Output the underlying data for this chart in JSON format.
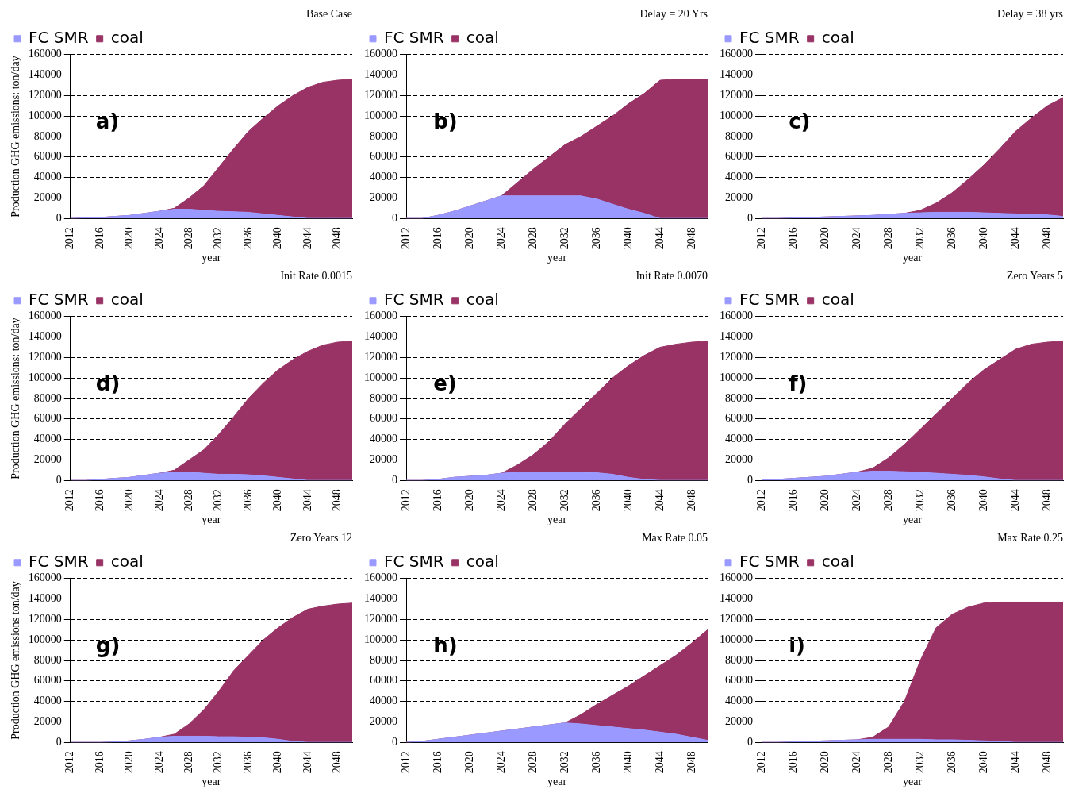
{
  "chart_data": [
    {
      "type": "area",
      "stacked": true,
      "title": "Base Case",
      "xlabel": "year",
      "ylabel": "Production GHG emissions: ton/day",
      "annotations": [
        "a)"
      ],
      "legend": "top left",
      "grid": "y",
      "marker": "none",
      "x": [
        2012,
        2014,
        2016,
        2018,
        2020,
        2022,
        2024,
        2026,
        2028,
        2030,
        2032,
        2034,
        2036,
        2038,
        2040,
        2042,
        2044,
        2046,
        2048,
        2050
      ],
      "xlim": [
        2012,
        2050
      ],
      "xticks": [
        2012,
        2016,
        2020,
        2024,
        2028,
        2032,
        2036,
        2040,
        2044,
        2048
      ],
      "ylim": [
        0,
        160000
      ],
      "yticks": [
        0,
        20000,
        40000,
        60000,
        80000,
        100000,
        120000,
        140000,
        160000
      ],
      "series": [
        {
          "name": "FC SMR",
          "color": "#9999ff",
          "values": [
            0,
            500,
            1000,
            2000,
            3000,
            5000,
            7000,
            9000,
            9000,
            8000,
            7000,
            6500,
            6000,
            4500,
            3000,
            1500,
            0,
            0,
            0,
            0
          ]
        },
        {
          "name": "coal",
          "color": "#993366",
          "values": [
            0,
            0,
            0,
            0,
            0,
            0,
            0,
            1000,
            11000,
            24000,
            43000,
            61500,
            79000,
            93500,
            107000,
            118500,
            128000,
            133000,
            135000,
            136000
          ]
        }
      ]
    },
    {
      "type": "area",
      "stacked": true,
      "title": "Delay = 20 Yrs",
      "xlabel": "year",
      "annotations": [
        "b)"
      ],
      "legend": "top left",
      "grid": "y",
      "marker": "none",
      "x": [
        2012,
        2014,
        2016,
        2018,
        2020,
        2022,
        2024,
        2026,
        2028,
        2030,
        2032,
        2034,
        2036,
        2038,
        2040,
        2042,
        2044,
        2046,
        2048,
        2050
      ],
      "xlim": [
        2012,
        2050
      ],
      "xticks": [
        2012,
        2016,
        2020,
        2024,
        2028,
        2032,
        2036,
        2040,
        2044,
        2048
      ],
      "ylim": [
        0,
        160000
      ],
      "yticks": [
        0,
        20000,
        40000,
        60000,
        80000,
        100000,
        120000,
        140000,
        160000
      ],
      "series": [
        {
          "name": "FC SMR",
          "color": "#9999ff",
          "values": [
            0,
            0,
            3000,
            7000,
            12000,
            17000,
            22000,
            22000,
            22000,
            22000,
            22000,
            22000,
            19000,
            14000,
            9000,
            5000,
            0,
            0,
            0,
            0
          ]
        },
        {
          "name": "coal",
          "color": "#993366",
          "values": [
            0,
            0,
            0,
            0,
            0,
            0,
            0,
            13000,
            26000,
            38000,
            50000,
            58000,
            71000,
            86000,
            103000,
            117000,
            135000,
            136000,
            136000,
            136000
          ]
        }
      ]
    },
    {
      "type": "area",
      "stacked": true,
      "title": "Delay = 38 yrs",
      "xlabel": "year",
      "annotations": [
        "c)"
      ],
      "legend": "top left",
      "grid": "y",
      "marker": "none",
      "x": [
        2012,
        2014,
        2016,
        2018,
        2020,
        2022,
        2024,
        2026,
        2028,
        2030,
        2032,
        2034,
        2036,
        2038,
        2040,
        2042,
        2044,
        2046,
        2048,
        2050
      ],
      "xlim": [
        2012,
        2050
      ],
      "xticks": [
        2012,
        2016,
        2020,
        2024,
        2028,
        2032,
        2036,
        2040,
        2044,
        2048
      ],
      "ylim": [
        0,
        160000
      ],
      "yticks": [
        0,
        20000,
        40000,
        60000,
        80000,
        100000,
        120000,
        140000,
        160000
      ],
      "series": [
        {
          "name": "FC SMR",
          "color": "#9999ff",
          "values": [
            0,
            0,
            500,
            1000,
            1500,
            2000,
            2500,
            3000,
            4000,
            5000,
            5500,
            6000,
            6000,
            6000,
            5500,
            5000,
            4500,
            4000,
            3500,
            2000
          ]
        },
        {
          "name": "coal",
          "color": "#993366",
          "values": [
            0,
            0,
            0,
            0,
            0,
            0,
            0,
            0,
            0,
            0,
            2500,
            9000,
            19000,
            32000,
            46500,
            63000,
            80500,
            94000,
            106500,
            116000
          ]
        }
      ]
    },
    {
      "type": "area",
      "stacked": true,
      "title": "Init Rate 0.0015",
      "xlabel": "year",
      "ylabel": "Production GHG emissions: ton/day",
      "annotations": [
        "d)"
      ],
      "legend": "top left",
      "grid": "y",
      "marker": "none",
      "x": [
        2012,
        2014,
        2016,
        2018,
        2020,
        2022,
        2024,
        2026,
        2028,
        2030,
        2032,
        2034,
        2036,
        2038,
        2040,
        2042,
        2044,
        2046,
        2048,
        2050
      ],
      "xlim": [
        2012,
        2050
      ],
      "xticks": [
        2012,
        2016,
        2020,
        2024,
        2028,
        2032,
        2036,
        2040,
        2044,
        2048
      ],
      "ylim": [
        0,
        160000
      ],
      "yticks": [
        0,
        20000,
        40000,
        60000,
        80000,
        100000,
        120000,
        140000,
        160000
      ],
      "series": [
        {
          "name": "FC SMR",
          "color": "#9999ff",
          "values": [
            0,
            0,
            1000,
            2000,
            3000,
            5000,
            7000,
            8000,
            8000,
            7000,
            6000,
            6000,
            5500,
            4500,
            3000,
            1500,
            0,
            0,
            0,
            0
          ]
        },
        {
          "name": "coal",
          "color": "#993366",
          "values": [
            0,
            0,
            0,
            0,
            0,
            0,
            0,
            2000,
            12000,
            23000,
            39000,
            56000,
            74500,
            90500,
            105000,
            116500,
            126000,
            132000,
            135000,
            136000
          ]
        }
      ]
    },
    {
      "type": "area",
      "stacked": true,
      "title": "Init Rate 0.0070",
      "xlabel": "year",
      "annotations": [
        "e)"
      ],
      "legend": "top left",
      "grid": "y",
      "marker": "none",
      "x": [
        2012,
        2014,
        2016,
        2018,
        2020,
        2022,
        2024,
        2026,
        2028,
        2030,
        2032,
        2034,
        2036,
        2038,
        2040,
        2042,
        2044,
        2046,
        2048,
        2050
      ],
      "xlim": [
        2012,
        2050
      ],
      "xticks": [
        2012,
        2016,
        2020,
        2024,
        2028,
        2032,
        2036,
        2040,
        2044,
        2048
      ],
      "ylim": [
        0,
        160000
      ],
      "yticks": [
        0,
        20000,
        40000,
        60000,
        80000,
        100000,
        120000,
        140000,
        160000
      ],
      "series": [
        {
          "name": "FC SMR",
          "color": "#9999ff",
          "values": [
            0,
            0,
            1000,
            3000,
            4000,
            5000,
            7000,
            8000,
            8000,
            8000,
            8000,
            8000,
            7500,
            6000,
            3000,
            1000,
            0,
            0,
            0,
            0
          ]
        },
        {
          "name": "coal",
          "color": "#993366",
          "values": [
            0,
            0,
            0,
            0,
            0,
            0,
            0,
            7000,
            17000,
            30000,
            47000,
            62000,
            77500,
            94000,
            109000,
            121000,
            130000,
            133000,
            135000,
            136000
          ]
        }
      ]
    },
    {
      "type": "area",
      "stacked": true,
      "title": "Zero Years 5",
      "xlabel": "year",
      "annotations": [
        "f)"
      ],
      "legend": "top left",
      "grid": "y",
      "marker": "none",
      "x": [
        2012,
        2014,
        2016,
        2018,
        2020,
        2022,
        2024,
        2026,
        2028,
        2030,
        2032,
        2034,
        2036,
        2038,
        2040,
        2042,
        2044,
        2046,
        2048,
        2050
      ],
      "xlim": [
        2012,
        2050
      ],
      "xticks": [
        2012,
        2016,
        2020,
        2024,
        2028,
        2032,
        2036,
        2040,
        2044,
        2048
      ],
      "ylim": [
        0,
        160000
      ],
      "yticks": [
        0,
        20000,
        40000,
        60000,
        80000,
        100000,
        120000,
        140000,
        160000
      ],
      "series": [
        {
          "name": "FC SMR",
          "color": "#9999ff",
          "values": [
            500,
            1000,
            2000,
            3000,
            4000,
            6000,
            8000,
            9000,
            9000,
            8500,
            8000,
            7000,
            6000,
            5000,
            3500,
            1500,
            0,
            0,
            0,
            0
          ]
        },
        {
          "name": "coal",
          "color": "#993366",
          "values": [
            0,
            0,
            0,
            0,
            0,
            0,
            0,
            3000,
            13000,
            26500,
            42000,
            58000,
            74000,
            90000,
            104500,
            116500,
            128000,
            133000,
            135000,
            136000
          ]
        }
      ]
    },
    {
      "type": "area",
      "stacked": true,
      "title": "Zero Years 12",
      "xlabel": "year",
      "ylabel": "Production GHG emissions ton/day",
      "annotations": [
        "g)"
      ],
      "legend": "top left",
      "grid": "y",
      "marker": "none",
      "x": [
        2012,
        2014,
        2016,
        2018,
        2020,
        2022,
        2024,
        2026,
        2028,
        2030,
        2032,
        2034,
        2036,
        2038,
        2040,
        2042,
        2044,
        2046,
        2048,
        2050
      ],
      "xlim": [
        2012,
        2050
      ],
      "xticks": [
        2012,
        2016,
        2020,
        2024,
        2028,
        2032,
        2036,
        2040,
        2044,
        2048
      ],
      "ylim": [
        0,
        160000
      ],
      "yticks": [
        0,
        20000,
        40000,
        60000,
        80000,
        100000,
        120000,
        140000,
        160000
      ],
      "series": [
        {
          "name": "FC SMR",
          "color": "#9999ff",
          "values": [
            0,
            0,
            0,
            500,
            1500,
            3000,
            5000,
            6000,
            6000,
            6000,
            5500,
            5500,
            5000,
            4500,
            3000,
            1000,
            0,
            0,
            0,
            0
          ]
        },
        {
          "name": "coal",
          "color": "#993366",
          "values": [
            0,
            0,
            0,
            0,
            0,
            0,
            0,
            2000,
            12000,
            26000,
            44500,
            64500,
            80000,
            95500,
            109000,
            121000,
            130000,
            133000,
            135000,
            136000
          ]
        }
      ]
    },
    {
      "type": "area",
      "stacked": true,
      "title": "Max Rate 0.05",
      "xlabel": "year",
      "annotations": [
        "h)"
      ],
      "legend": "top left",
      "grid": "y",
      "marker": "none",
      "x": [
        2012,
        2014,
        2016,
        2018,
        2020,
        2022,
        2024,
        2026,
        2028,
        2030,
        2032,
        2034,
        2036,
        2038,
        2040,
        2042,
        2044,
        2046,
        2048,
        2050
      ],
      "xlim": [
        2012,
        2050
      ],
      "xticks": [
        2012,
        2016,
        2020,
        2024,
        2028,
        2032,
        2036,
        2040,
        2044,
        2048
      ],
      "ylim": [
        0,
        160000
      ],
      "yticks": [
        0,
        20000,
        40000,
        60000,
        80000,
        100000,
        120000,
        140000,
        160000
      ],
      "series": [
        {
          "name": "FC SMR",
          "color": "#9999ff",
          "values": [
            0,
            1000,
            3000,
            5000,
            7000,
            9000,
            11000,
            13000,
            15000,
            17000,
            19000,
            18000,
            16500,
            15000,
            13500,
            12000,
            10000,
            8000,
            5000,
            2000
          ]
        },
        {
          "name": "coal",
          "color": "#993366",
          "values": [
            0,
            0,
            0,
            0,
            0,
            0,
            0,
            0,
            0,
            0,
            0,
            9000,
            20500,
            31000,
            41500,
            53000,
            65000,
            77000,
            92000,
            108000
          ]
        }
      ]
    },
    {
      "type": "area",
      "stacked": true,
      "title": "Max Rate 0.25",
      "xlabel": "year",
      "annotations": [
        "i)"
      ],
      "legend": "top left",
      "grid": "y",
      "marker": "none",
      "x": [
        2012,
        2014,
        2016,
        2018,
        2020,
        2022,
        2024,
        2026,
        2028,
        2030,
        2032,
        2034,
        2036,
        2038,
        2040,
        2042,
        2044,
        2046,
        2048,
        2050
      ],
      "xlim": [
        2012,
        2050
      ],
      "xticks": [
        2012,
        2016,
        2020,
        2024,
        2028,
        2032,
        2036,
        2040,
        2044,
        2048
      ],
      "ylim": [
        0,
        160000
      ],
      "yticks": [
        0,
        20000,
        40000,
        60000,
        80000,
        100000,
        120000,
        140000,
        160000
      ],
      "series": [
        {
          "name": "FC SMR",
          "color": "#9999ff",
          "values": [
            0,
            0,
            500,
            1000,
            1500,
            2000,
            2500,
            3000,
            3000,
            3000,
            3000,
            2500,
            2500,
            2000,
            1500,
            1000,
            0,
            0,
            0,
            0
          ]
        },
        {
          "name": "coal",
          "color": "#993366",
          "values": [
            0,
            0,
            0,
            0,
            0,
            0,
            0,
            2000,
            12000,
            37000,
            77000,
            109500,
            122500,
            130000,
            134500,
            136000,
            137000,
            137000,
            137000,
            137000
          ]
        }
      ]
    }
  ]
}
